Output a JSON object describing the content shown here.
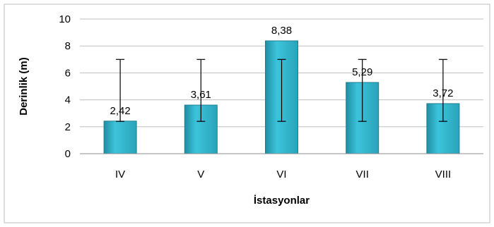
{
  "chart_data": {
    "type": "bar",
    "categories": [
      "IV",
      "V",
      "VI",
      "VII",
      "VIII"
    ],
    "values": [
      2.42,
      3.61,
      8.38,
      5.29,
      3.72
    ],
    "value_labels": [
      "2,42",
      "3,61",
      "8,38",
      "5,29",
      "3,72"
    ],
    "error_bars": [
      {
        "low": 2.4,
        "high": 7.0
      },
      {
        "low": 2.4,
        "high": 7.0
      },
      {
        "low": 2.4,
        "high": 7.0
      },
      {
        "low": 2.4,
        "high": 7.0
      },
      {
        "low": 2.4,
        "high": 7.0
      }
    ],
    "title": "",
    "xlabel": "İstasyonlar",
    "ylabel": "Derinlik (m)",
    "ylim": [
      0,
      10
    ],
    "yticks": [
      "0",
      "2",
      "4",
      "6",
      "8",
      "10"
    ],
    "ytick_values": [
      0,
      2,
      4,
      6,
      8,
      10
    ],
    "grid": true,
    "legend": "none",
    "colors": {
      "bar_fill": "#2bb0c8",
      "bar_stroke": "#1f7f92",
      "grid": "#bfbfbf",
      "error_bar": "#000000",
      "frame": "#bfbfbf"
    }
  }
}
